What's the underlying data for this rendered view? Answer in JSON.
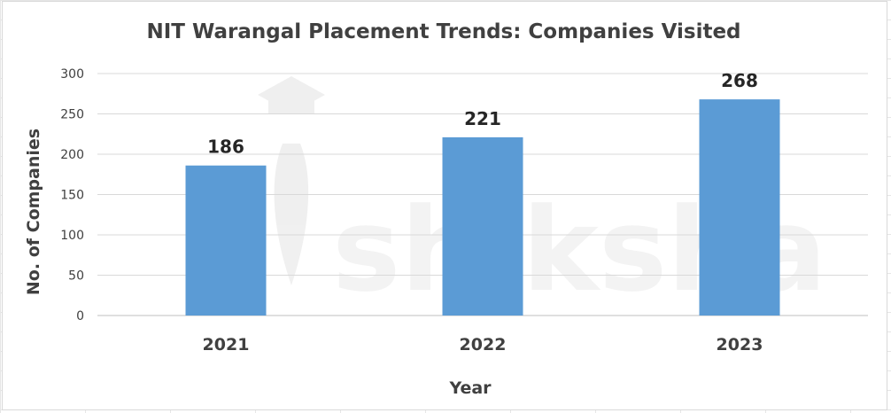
{
  "chart_data": {
    "type": "bar",
    "title": "NIT Warangal Placement Trends: Companies Visited",
    "categories": [
      "2021",
      "2022",
      "2023"
    ],
    "series": [
      {
        "values": [
          186,
          221,
          268
        ]
      }
    ],
    "data_labels": [
      "186",
      "221",
      "268"
    ],
    "xlabel": "Year",
    "ylabel": "No. of Companies",
    "ylim": [
      0,
      300
    ],
    "yticks": [
      "0",
      "50",
      "100",
      "150",
      "200",
      "250",
      "300"
    ],
    "grid": true,
    "legend": "none",
    "bar_color": "#5b9bd5"
  },
  "watermark": {
    "text": "shiksha"
  }
}
